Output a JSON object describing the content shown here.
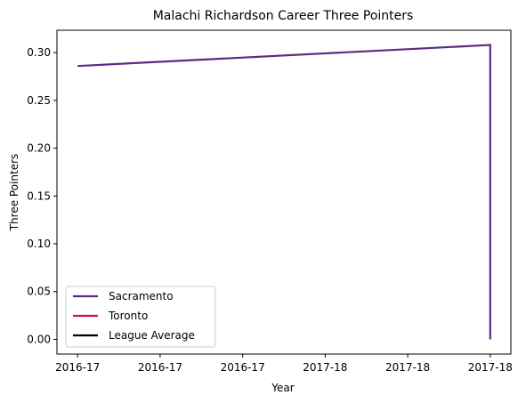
{
  "chart_data": {
    "type": "line",
    "title": "Malachi Richardson Career Three Pointers",
    "xlabel": "Year",
    "ylabel": "Three Pointers",
    "x_tick_labels": [
      "2016-17",
      "2016-17",
      "2016-17",
      "2017-18",
      "2017-18",
      "2017-18"
    ],
    "x_ticks": [
      0,
      0.2,
      0.4,
      0.6,
      0.8,
      1.0
    ],
    "xlim": [
      -0.05,
      1.05
    ],
    "y_ticks": [
      0.0,
      0.05,
      0.1,
      0.15,
      0.2,
      0.25,
      0.3
    ],
    "y_tick_labels": [
      "0.00",
      "0.05",
      "0.10",
      "0.15",
      "0.20",
      "0.25",
      "0.30"
    ],
    "ylim": [
      -0.0154,
      0.3234
    ],
    "grid": false,
    "legend_position": "lower-left",
    "series": [
      {
        "name": "Sacramento",
        "color": "#5a2d81",
        "points": [
          [
            0,
            0.286
          ],
          [
            1.0,
            0.308
          ],
          [
            1.0,
            0.0
          ]
        ]
      },
      {
        "name": "Toronto",
        "color": "#ce1141",
        "points": []
      },
      {
        "name": "League Average",
        "color": "#000000",
        "points": []
      }
    ]
  }
}
